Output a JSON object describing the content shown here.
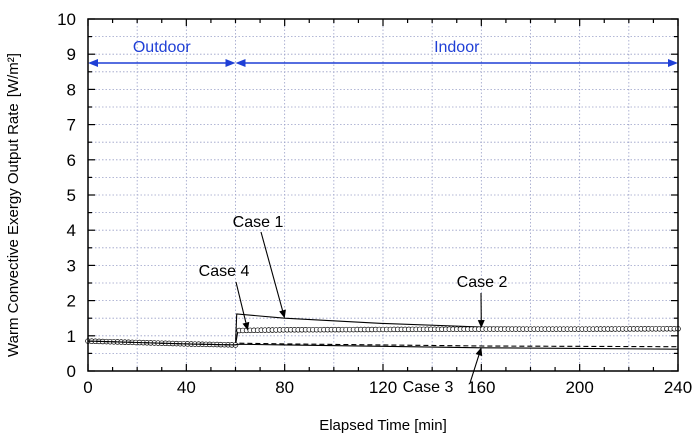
{
  "chart_data": {
    "type": "line",
    "title": "",
    "xlabel": "Elapsed Time [min]",
    "ylabel": "Warm Convective Exergy Output Rate",
    "ylabel_unit": "[W/m²]",
    "xlim": [
      0,
      240
    ],
    "ylim": [
      0,
      10
    ],
    "xticks": [
      0,
      40,
      80,
      120,
      160,
      200,
      240
    ],
    "yticks": [
      0,
      1,
      2,
      3,
      4,
      5,
      6,
      7,
      8,
      9,
      10
    ],
    "grid": true,
    "colors": {
      "region_arrow": "#1f3fd6",
      "series": "#000000",
      "grid": "#9aa0c8"
    },
    "regions": [
      {
        "label": "Outdoor",
        "x_start": 0,
        "x_end": 60,
        "y": 8.75
      },
      {
        "label": "Indoor",
        "x_start": 60,
        "x_end": 240,
        "y": 8.75
      }
    ],
    "series": [
      {
        "name": "Case 1",
        "style": "solid",
        "x": [
          0,
          20,
          40,
          60,
          60.5,
          80,
          120,
          160,
          200,
          240
        ],
        "y": [
          0.85,
          0.81,
          0.77,
          0.74,
          1.62,
          1.5,
          1.35,
          1.25,
          1.22,
          1.2
        ]
      },
      {
        "name": "Case 2",
        "style": "circles",
        "x": [
          0,
          20,
          40,
          60,
          61,
          80,
          120,
          160,
          200,
          240
        ],
        "y": [
          0.85,
          0.81,
          0.77,
          0.74,
          1.15,
          1.17,
          1.18,
          1.19,
          1.19,
          1.2
        ]
      },
      {
        "name": "Case 3",
        "style": "solid",
        "x": [
          0,
          20,
          40,
          60,
          61,
          80,
          120,
          160,
          200,
          240
        ],
        "y": [
          0.85,
          0.81,
          0.77,
          0.74,
          0.76,
          0.74,
          0.7,
          0.66,
          0.64,
          0.62
        ]
      },
      {
        "name": "Case 4",
        "style": "dashed",
        "x": [
          0,
          20,
          40,
          60,
          61,
          80,
          120,
          160,
          200,
          240
        ],
        "y": [
          0.85,
          0.81,
          0.77,
          0.74,
          0.79,
          0.77,
          0.74,
          0.71,
          0.7,
          0.69
        ]
      }
    ],
    "annotations": [
      {
        "text": "Case 1",
        "target_x": 80,
        "target_y": 1.5
      },
      {
        "text": "Case 2",
        "target_x": 160,
        "target_y": 1.22
      },
      {
        "text": "Case 3",
        "target_x": 160,
        "target_y": 0.67
      },
      {
        "text": "Case 4",
        "target_x": 65,
        "target_y": 1.15
      }
    ]
  }
}
